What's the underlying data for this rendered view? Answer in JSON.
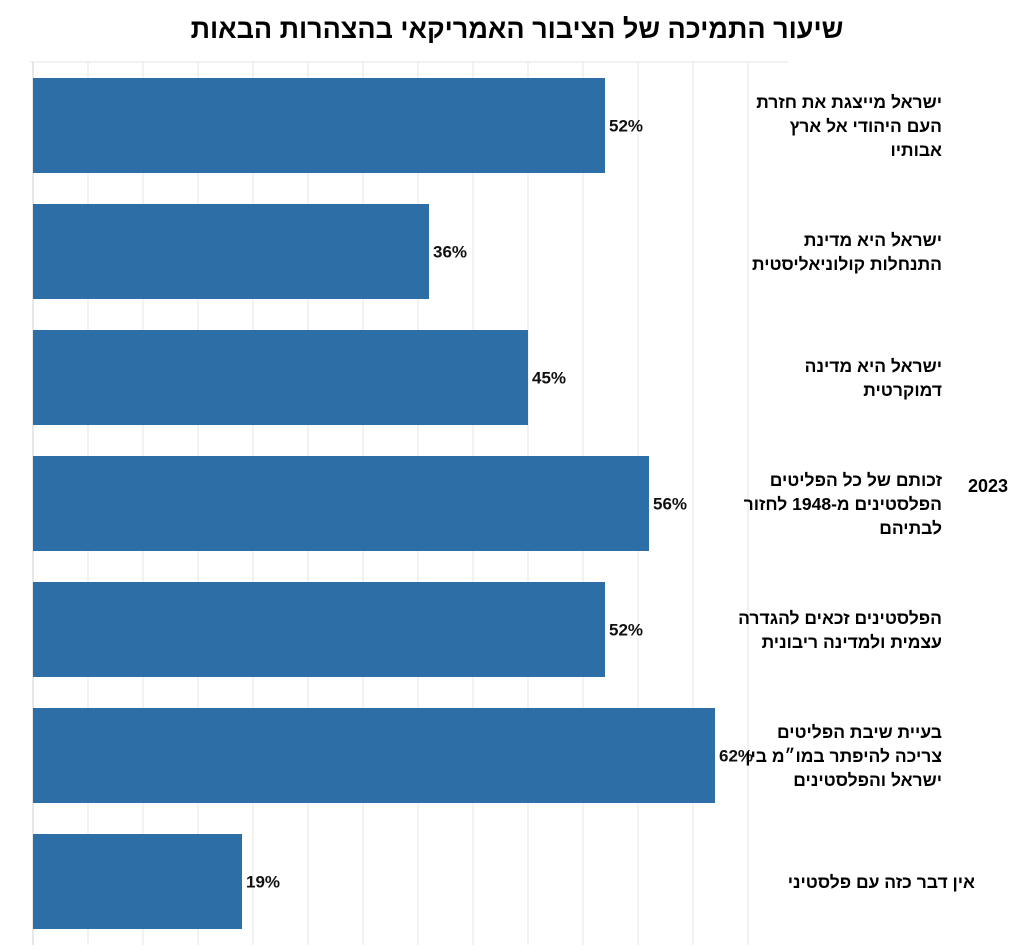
{
  "chart_data": {
    "type": "bar",
    "orientation": "horizontal",
    "title": "שיעור התמיכה של הציבור האמריקאי בהצהרות הבאות",
    "group_label": "2023",
    "categories": [
      "ישראל מייצגת את חזרת העם היהודי אל ארץ אבותיו",
      "ישראל היא מדינת התנחלות קולוניאליסטית",
      "ישראל היא מדינה דמוקרטית",
      "זכותם של כל הפליטים הפלסטינים מ-1948 לחזור לבתיהם",
      "הפלסטינים זכאים להגדרה עצמית ולמדינה ריבונית",
      "בעיית שיבת הפליטים צריכה להיפתר במו״מ בין ישראל והפלסטינים",
      "אין דבר כזה עם פלסטיני"
    ],
    "values": [
      52,
      36,
      45,
      56,
      52,
      62,
      19
    ],
    "value_labels": [
      "52%",
      "36%",
      "45%",
      "56%",
      "52%",
      "62%",
      "19%"
    ],
    "xlim": [
      0,
      70
    ],
    "grid": true,
    "legend": "none",
    "bar_color": "#2e6ea6",
    "grid_color": "#e6e6e6"
  }
}
